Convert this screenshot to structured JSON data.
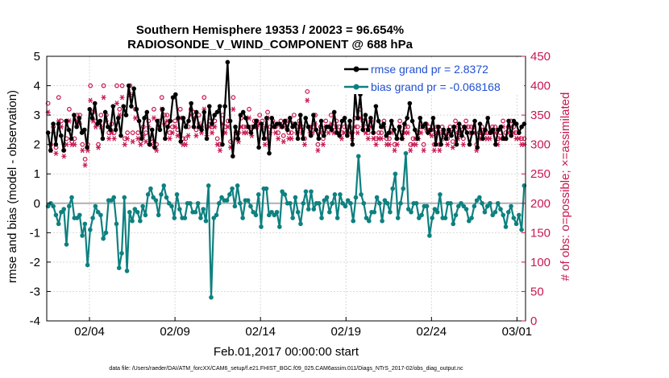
{
  "chart_data": {
    "type": "line",
    "title_line1": "Southern Hemisphere 19353 / 20023 = 96.654%",
    "title_line2": "RADIOSONDE_V_WIND_COMPONENT @ 688 hPa",
    "xlabel": "Feb.01,2017 00:00:00 start",
    "ylabel_left": "rmse and bias (model - observation)",
    "ylabel_right": "# of obs: o=possible; ×=assimilated",
    "footnote": "data file: /Users/raeder/DAI/ATM_forcXX/CAM6_setup/f.e21.FHIST_BGC.f09_025.CAM6assim.011/Diags_NTrS_2017-02/obs_diag_output.nc",
    "x_range_days": [
      0.5,
      28.5
    ],
    "ylim_left": [
      -4,
      5
    ],
    "ylim_right": [
      0,
      450
    ],
    "xticks": [
      {
        "day": 3,
        "label": "02/04"
      },
      {
        "day": 8,
        "label": "02/09"
      },
      {
        "day": 13,
        "label": "02/14"
      },
      {
        "day": 18,
        "label": "02/19"
      },
      {
        "day": 23,
        "label": "02/24"
      },
      {
        "day": 28,
        "label": "03/01"
      }
    ],
    "yticks_left": [
      "-4",
      "-3",
      "-2",
      "-1",
      "0",
      "1",
      "2",
      "3",
      "4",
      "5"
    ],
    "yticks_right": [
      "0",
      "50",
      "100",
      "150",
      "200",
      "250",
      "300",
      "350",
      "400",
      "450"
    ],
    "colors": {
      "rmse": "#000000",
      "bias": "#0e8080",
      "obs": "#c8174f",
      "zero": "#b0b0b0",
      "legend_text": "#1f4fd0"
    },
    "series": [
      {
        "name": "rmse grand pr = 2.8372",
        "values": [
          2.4,
          1.8,
          2.7,
          2.0,
          2.7,
          2.3,
          1.8,
          2.8,
          2.5,
          2.2,
          3.0,
          2.6,
          2.9,
          2.4,
          2.5,
          1.9,
          3.2,
          2.9,
          3.4,
          2.7,
          2.8,
          2.2,
          3.1,
          2.6,
          2.5,
          3.3,
          2.5,
          2.9,
          2.3,
          3.3,
          3.0,
          4.0,
          3.3,
          3.9,
          3.2,
          2.8,
          2.2,
          2.9,
          3.1,
          2.0,
          2.5,
          1.9,
          2.8,
          2.5,
          3.2,
          2.2,
          2.6,
          2.8,
          3.6,
          3.7,
          2.9,
          2.1,
          2.9,
          2.6,
          2.8,
          3.4,
          2.6,
          3.1,
          2.6,
          2.5,
          3.1,
          2.2,
          3.3,
          2.7,
          3.0,
          3.1,
          3.3,
          2.0,
          3.3,
          4.8,
          2.8,
          1.6,
          2.6,
          2.2,
          3.0,
          3.1,
          2.9,
          2.6,
          2.4,
          2.6,
          2.8,
          1.9,
          2.7,
          2.2,
          2.9,
          1.7,
          2.9,
          2.6,
          2.7,
          2.7,
          2.6,
          2.8,
          2.5,
          2.9,
          2.6,
          2.7,
          2.2,
          3.0,
          2.2,
          2.9,
          2.6,
          2.3,
          3.0,
          2.5,
          2.2,
          2.8,
          2.3,
          2.6,
          2.6,
          2.5,
          3.1,
          2.4,
          2.3,
          2.8,
          2.9,
          2.3,
          2.8,
          2.0,
          3.8,
          2.9,
          3.7,
          2.5,
          3.0,
          2.5,
          2.9,
          2.4,
          3.3,
          2.8,
          2.6,
          2.7,
          2.3,
          2.4,
          2.8,
          2.5,
          2.2,
          2.6,
          2.2,
          2.7,
          2.9,
          3.4,
          2.8,
          2.5,
          2.2,
          2.9,
          2.6,
          2.7,
          2.4,
          2.5,
          2.9,
          2.0,
          2.6,
          2.0,
          2.5,
          2.2,
          2.5,
          2.3,
          2.6,
          2.0,
          2.7,
          2.3,
          2.6,
          2.4,
          2.0,
          2.4,
          2.8,
          1.9,
          2.7,
          2.2,
          2.5,
          2.9,
          2.4,
          2.5,
          2.0,
          2.5,
          2.6,
          2.2,
          2.2,
          2.8,
          2.3,
          2.8,
          2.7,
          2.4,
          2.6,
          2.7
        ]
      },
      {
        "name": "bias grand pr = -0.068168",
        "values": [
          -0.1,
          0.0,
          -0.1,
          -0.4,
          -0.7,
          -0.3,
          -0.2,
          -1.4,
          -0.1,
          0.2,
          -0.5,
          -0.5,
          -0.4,
          -1.1,
          -0.7,
          -2.1,
          -0.9,
          -0.5,
          -0.1,
          -0.3,
          -0.4,
          -1.2,
          -1.0,
          0.1,
          0.1,
          0.2,
          -0.7,
          -2.2,
          -1.7,
          0.2,
          -2.3,
          -0.3,
          -0.6,
          -0.2,
          -0.3,
          -0.6,
          -0.1,
          -0.4,
          0.3,
          0.5,
          0.2,
          0.1,
          -0.4,
          0.3,
          0.6,
          0.2,
          0.0,
          -0.1,
          -0.5,
          0.3,
          -0.2,
          -0.5,
          -0.5,
          0.0,
          0.0,
          -0.3,
          -0.3,
          0.0,
          -0.5,
          -0.2,
          -0.6,
          0.6,
          -3.2,
          -0.5,
          -0.4,
          0.0,
          0.2,
          0.1,
          0.1,
          0.3,
          0.5,
          -0.1,
          0.6,
          0.0,
          -0.5,
          0.1,
          0.1,
          -0.1,
          -0.3,
          -0.4,
          0.3,
          -0.8,
          0.5,
          0.5,
          -0.4,
          -0.3,
          -0.4,
          -0.3,
          -0.8,
          0.4,
          0.3,
          0.0,
          0.0,
          -0.5,
          0.2,
          -0.3,
          -0.7,
          0.0,
          0.4,
          -0.2,
          0.4,
          -0.2,
          0.0,
          0.0,
          -0.5,
          0.1,
          0.2,
          -0.3,
          0.0,
          0.3,
          -0.5,
          0.3,
          0.0,
          -0.1,
          0.1,
          0.0,
          -0.6,
          0.2,
          1.6,
          0.3,
          0.0,
          -0.5,
          -0.6,
          -0.3,
          -0.3,
          0.2,
          0.0,
          -0.6,
          0.1,
          0.0,
          -0.3,
          0.5,
          1.0,
          -0.5,
          0.0,
          0.5,
          1.7,
          -0.2,
          -0.3,
          0.0,
          0.0,
          -0.5,
          -0.4,
          -0.1,
          -0.1,
          -1.1,
          -0.5,
          -0.2,
          -0.3,
          0.3,
          -0.5,
          -0.5,
          0.0,
          0.0,
          -0.7,
          -0.4,
          -0.1,
          0.0,
          -0.1,
          -0.2,
          -0.6,
          -0.5,
          -0.1,
          0.1,
          0.2,
          0.0,
          -0.3,
          -0.1,
          0.0,
          -0.4,
          -0.3,
          0.0,
          -0.2,
          -0.4,
          -0.8,
          -0.3,
          -0.1,
          -0.5,
          -0.7,
          -0.4,
          -0.9,
          0.6
        ]
      }
    ],
    "obs_possible": [
      370,
      300,
      330,
      295,
      380,
      340,
      290,
      310,
      360,
      305,
      310,
      350,
      350,
      300,
      275,
      300,
      400,
      355,
      340,
      300,
      350,
      400,
      350,
      320,
      335,
      320,
      400,
      360,
      400,
      310,
      320,
      400,
      320,
      360,
      320,
      305,
      330,
      320,
      340,
      310,
      360,
      300,
      340,
      380,
      350,
      350,
      320,
      330,
      340,
      325,
      360,
      310,
      310,
      330,
      360,
      355,
      325,
      350,
      330,
      380,
      330,
      340,
      330,
      340,
      310,
      300,
      350,
      330,
      340,
      305,
      380,
      320,
      320,
      345,
      330,
      330,
      360,
      330,
      340,
      340,
      350,
      340,
      310,
      355,
      330,
      340,
      330,
      320,
      340,
      315,
      340,
      320,
      320,
      350,
      330,
      340,
      330,
      310,
      390,
      330,
      330,
      350,
      300,
      330,
      310,
      340,
      330,
      350,
      330,
      340,
      330,
      320,
      330,
      330,
      330,
      320,
      345,
      330,
      360,
      340,
      330,
      320,
      340,
      320,
      310,
      320,
      320,
      340,
      310,
      310,
      330,
      300,
      310,
      340,
      320,
      330,
      330,
      300,
      310,
      310,
      320,
      330,
      300,
      335,
      330,
      325,
      300,
      330,
      300,
      330,
      320,
      310,
      330,
      305,
      340,
      320,
      330,
      310,
      340,
      330,
      330,
      330,
      300,
      320,
      330,
      320,
      320,
      320,
      330,
      330,
      310,
      320,
      340,
      320,
      330,
      340,
      330,
      320,
      320,
      310,
      310
    ],
    "obs_assimilated": [
      355,
      290,
      320,
      285,
      340,
      330,
      280,
      300,
      340,
      300,
      300,
      340,
      335,
      290,
      265,
      290,
      375,
      340,
      330,
      295,
      330,
      380,
      340,
      310,
      320,
      310,
      370,
      350,
      380,
      300,
      310,
      385,
      305,
      345,
      310,
      300,
      315,
      305,
      330,
      300,
      345,
      290,
      330,
      360,
      335,
      340,
      310,
      320,
      330,
      315,
      345,
      300,
      300,
      315,
      350,
      345,
      315,
      335,
      320,
      360,
      315,
      330,
      320,
      330,
      300,
      290,
      335,
      320,
      330,
      295,
      360,
      310,
      305,
      330,
      320,
      320,
      345,
      315,
      330,
      330,
      335,
      330,
      300,
      345,
      320,
      330,
      320,
      310,
      330,
      305,
      330,
      310,
      310,
      335,
      320,
      330,
      320,
      300,
      375,
      320,
      320,
      335,
      290,
      320,
      300,
      330,
      320,
      335,
      320,
      330,
      320,
      310,
      320,
      320,
      320,
      310,
      330,
      320,
      345,
      330,
      320,
      310,
      330,
      310,
      300,
      310,
      310,
      330,
      300,
      300,
      320,
      290,
      300,
      330,
      310,
      320,
      320,
      290,
      300,
      300,
      310,
      320,
      290,
      325,
      320,
      315,
      290,
      320,
      290,
      320,
      310,
      300,
      320,
      295,
      330,
      310,
      320,
      300,
      330,
      320,
      320,
      320,
      290,
      310,
      320,
      310,
      310,
      310,
      320,
      320,
      300,
      310,
      330,
      310,
      320,
      330,
      320,
      310,
      310,
      300,
      300
    ]
  }
}
